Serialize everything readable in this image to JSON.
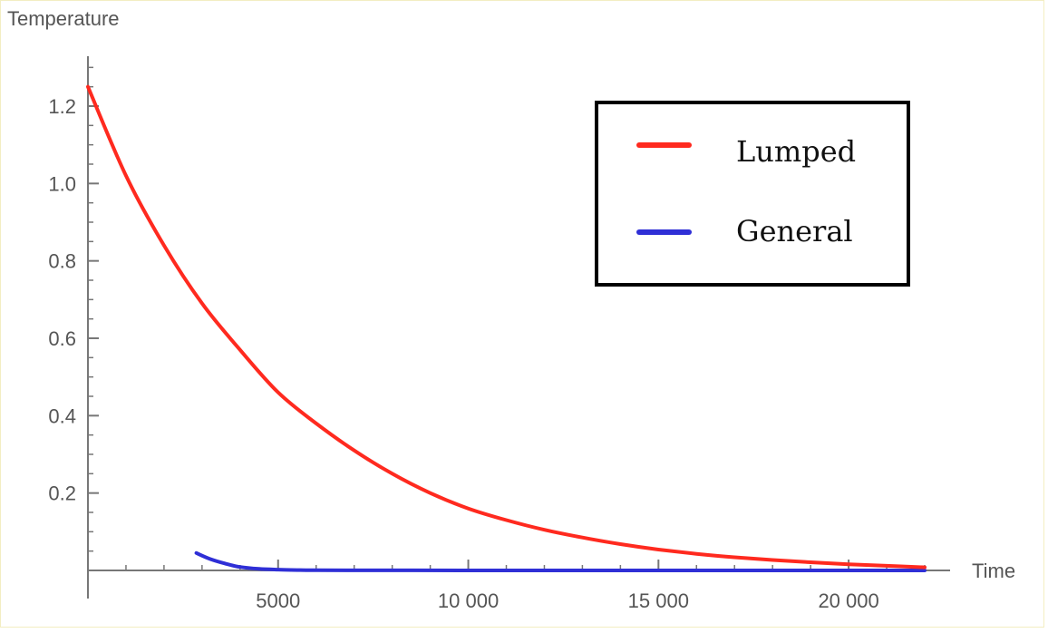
{
  "chart_data": {
    "type": "line",
    "title": "",
    "xlabel": "Time",
    "ylabel": "Temperature",
    "xlim": [
      0,
      22000
    ],
    "ylim": [
      0,
      1.3
    ],
    "x_ticks": [
      5000,
      10000,
      15000,
      20000
    ],
    "x_tick_labels": [
      "5000",
      "10 000",
      "15 000",
      "20 000"
    ],
    "y_ticks": [
      0.2,
      0.4,
      0.6,
      0.8,
      1.0,
      1.2
    ],
    "y_tick_labels": [
      "0.2",
      "0.4",
      "0.6",
      "0.8",
      "1.0",
      "1.2"
    ],
    "grid": false,
    "legend_position": "top-right",
    "series": [
      {
        "name": "Lumped",
        "color": "#ff2a1f",
        "x": [
          0,
          1000,
          2000,
          3000,
          4000,
          5000,
          6000,
          7000,
          8000,
          9000,
          10000,
          11000,
          12000,
          13000,
          14000,
          15000,
          16000,
          17000,
          18000,
          19000,
          20000,
          21000,
          22000
        ],
        "y": [
          1.25,
          1.02,
          0.84,
          0.69,
          0.57,
          0.46,
          0.38,
          0.31,
          0.25,
          0.2,
          0.16,
          0.13,
          0.105,
          0.085,
          0.068,
          0.054,
          0.043,
          0.034,
          0.027,
          0.021,
          0.016,
          0.012,
          0.008
        ]
      },
      {
        "name": "General",
        "color": "#2f2fd6",
        "x": [
          2850,
          3200,
          3600,
          4000,
          4500,
          5000,
          5500,
          6000,
          8000,
          10000,
          15000,
          20000,
          22000
        ],
        "y": [
          0.045,
          0.03,
          0.018,
          0.009,
          0.004,
          0.002,
          0.001,
          0.0005,
          0.0002,
          0.0001,
          0,
          0,
          0
        ]
      }
    ]
  }
}
